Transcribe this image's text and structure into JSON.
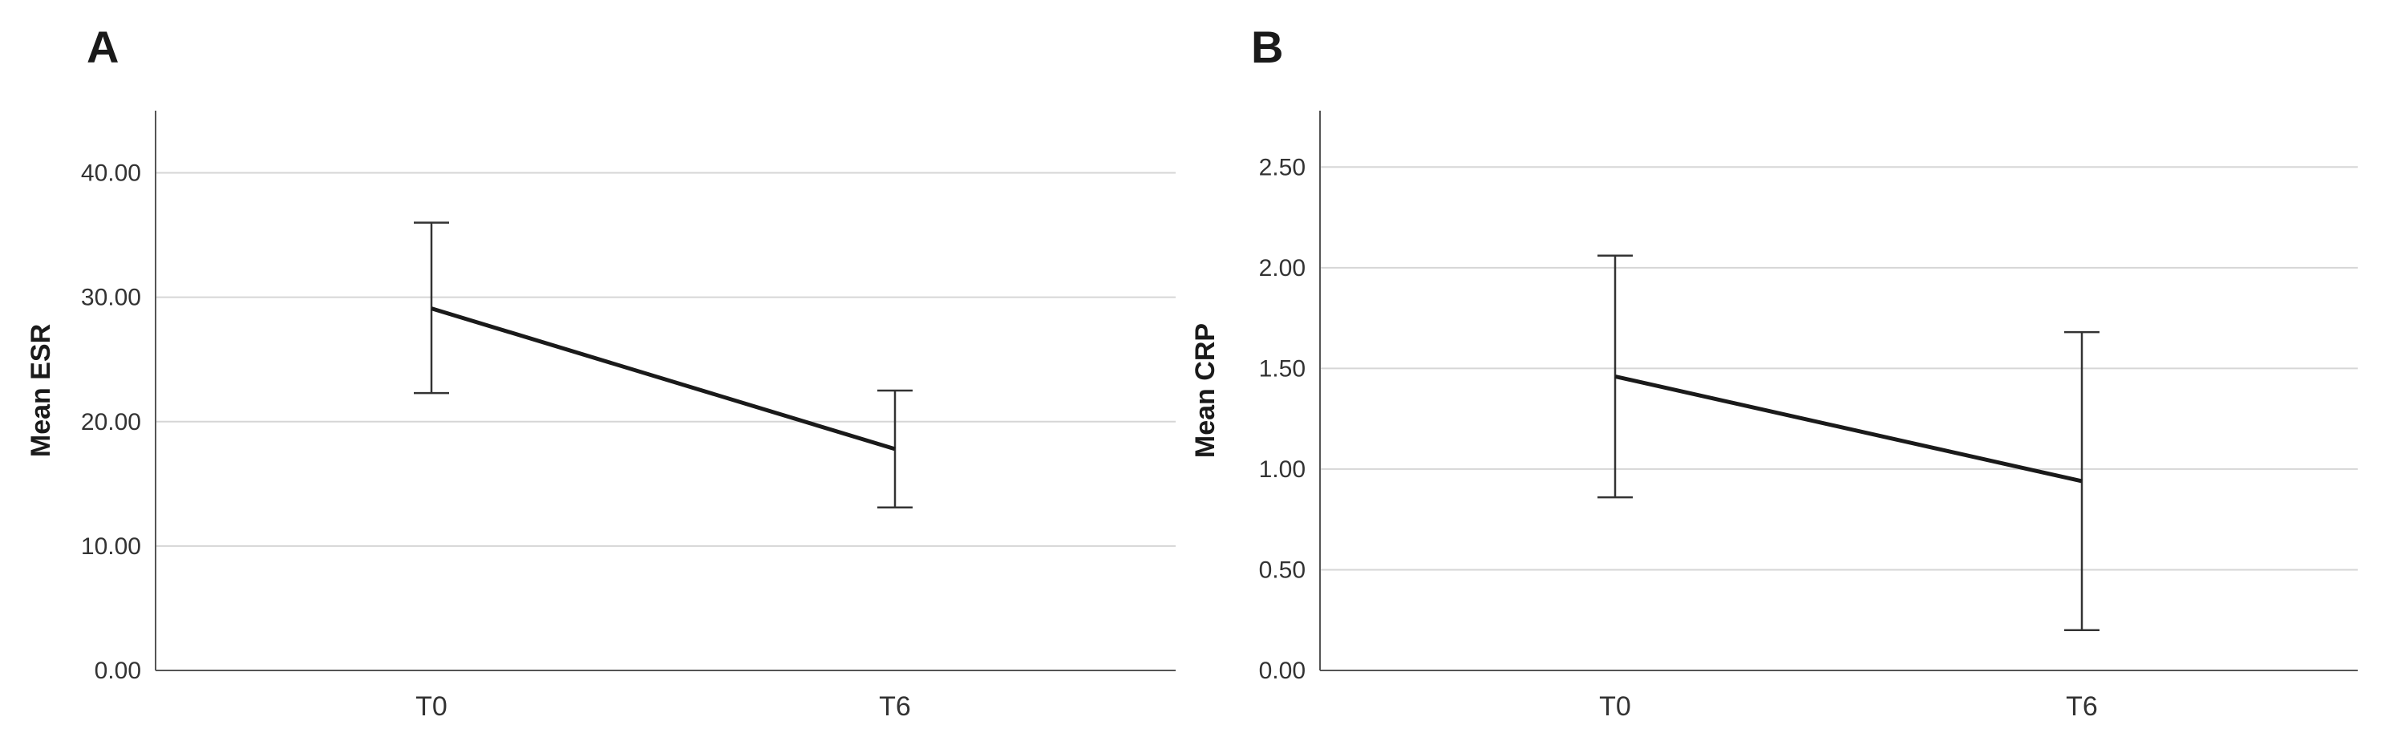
{
  "chart_data": [
    {
      "type": "line",
      "panel_label": "A",
      "ylabel": "Mean ESR",
      "xlabel": "",
      "categories": [
        "T0",
        "T6"
      ],
      "values": [
        29.1,
        17.8
      ],
      "error_bars": [
        {
          "low": 22.3,
          "high": 36.0
        },
        {
          "low": 13.1,
          "high": 22.5
        }
      ],
      "ylim": [
        0,
        45
      ],
      "yticks": [
        0,
        10,
        20,
        30,
        40
      ],
      "ytick_labels": [
        "0.00",
        "10.00",
        "20.00",
        "30.00",
        "40.00"
      ],
      "grid": true
    },
    {
      "type": "line",
      "panel_label": "B",
      "ylabel": "Mean CRP",
      "xlabel": "",
      "categories": [
        "T0",
        "T6"
      ],
      "values": [
        1.46,
        0.94
      ],
      "error_bars": [
        {
          "low": 0.86,
          "high": 2.06
        },
        {
          "low": 0.2,
          "high": 1.68
        }
      ],
      "ylim": [
        0,
        2.78
      ],
      "yticks": [
        0,
        0.5,
        1.0,
        1.5,
        2.0,
        2.5
      ],
      "ytick_labels": [
        "0.00",
        "0.50",
        "1.00",
        "1.50",
        "2.00",
        "2.50"
      ],
      "grid": true
    }
  ],
  "colors": {
    "line": "#1a1a1a",
    "grid": "#d6d6d6",
    "axis": "#555555"
  }
}
